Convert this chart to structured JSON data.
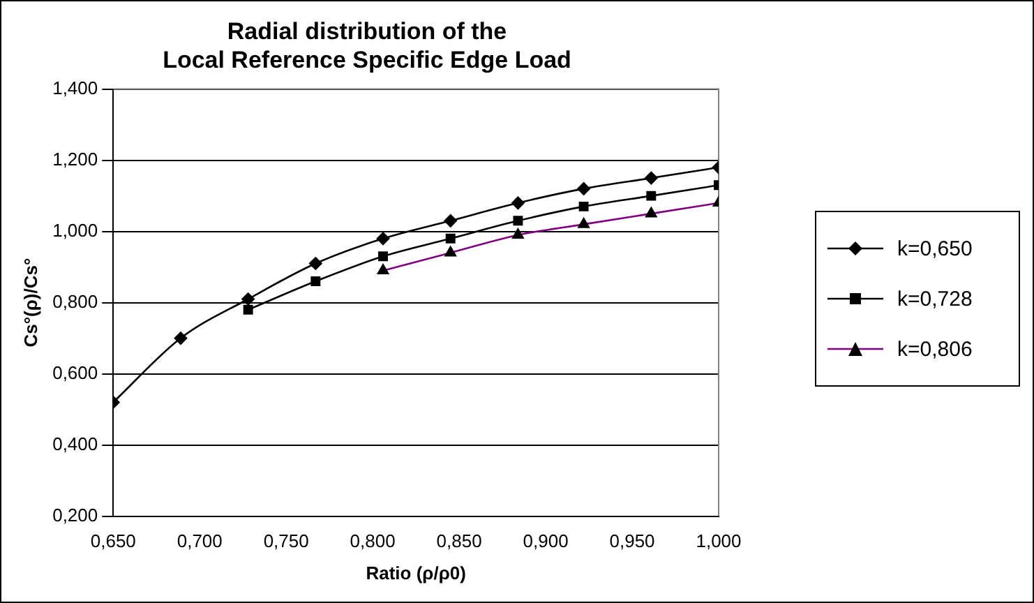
{
  "chart_data": {
    "type": "line",
    "title": "Radial distribution of the\nLocal Reference Specific Edge Load",
    "xlabel": "Ratio (ρ/ρ0)",
    "ylabel": "Cs°(ρ)/Cs°",
    "xlim": [
      0.65,
      1.0
    ],
    "xticks": [
      {
        "value": 0.65,
        "label": "0,650"
      },
      {
        "value": 0.7,
        "label": "0,700"
      },
      {
        "value": 0.75,
        "label": "0,750"
      },
      {
        "value": 0.8,
        "label": "0,800"
      },
      {
        "value": 0.85,
        "label": "0,850"
      },
      {
        "value": 0.9,
        "label": "0,900"
      },
      {
        "value": 0.95,
        "label": "0,950"
      },
      {
        "value": 1.0,
        "label": "1,000"
      }
    ],
    "ylim": [
      0.2,
      1.4
    ],
    "yticks": [
      {
        "value": 0.2,
        "label": "0,200"
      },
      {
        "value": 0.4,
        "label": "0,400"
      },
      {
        "value": 0.6,
        "label": "0,600"
      },
      {
        "value": 0.8,
        "label": "0,800"
      },
      {
        "value": 1.0,
        "label": "1,000"
      },
      {
        "value": 1.2,
        "label": "1,200"
      },
      {
        "value": 1.4,
        "label": "1,400"
      }
    ],
    "grid": "y",
    "legend": "right",
    "series": [
      {
        "name": "k=0,650",
        "color": "#000000",
        "marker": "diamond",
        "x": [
          0.65,
          0.689,
          0.728,
          0.767,
          0.806,
          0.845,
          0.884,
          0.922,
          0.961,
          1.0
        ],
        "values": [
          0.52,
          0.7,
          0.81,
          0.91,
          0.98,
          1.03,
          1.08,
          1.12,
          1.15,
          1.18
        ]
      },
      {
        "name": "k=0,728",
        "color": "#000000",
        "marker": "square",
        "x": [
          0.728,
          0.767,
          0.806,
          0.845,
          0.884,
          0.922,
          0.961,
          1.0
        ],
        "values": [
          0.78,
          0.86,
          0.93,
          0.98,
          1.03,
          1.07,
          1.1,
          1.13
        ]
      },
      {
        "name": "k=0,806",
        "color": "#800080",
        "marker": "triangle",
        "x": [
          0.806,
          0.845,
          0.884,
          0.922,
          0.961,
          1.0
        ],
        "values": [
          0.89,
          0.94,
          0.99,
          1.02,
          1.05,
          1.08
        ]
      }
    ]
  }
}
